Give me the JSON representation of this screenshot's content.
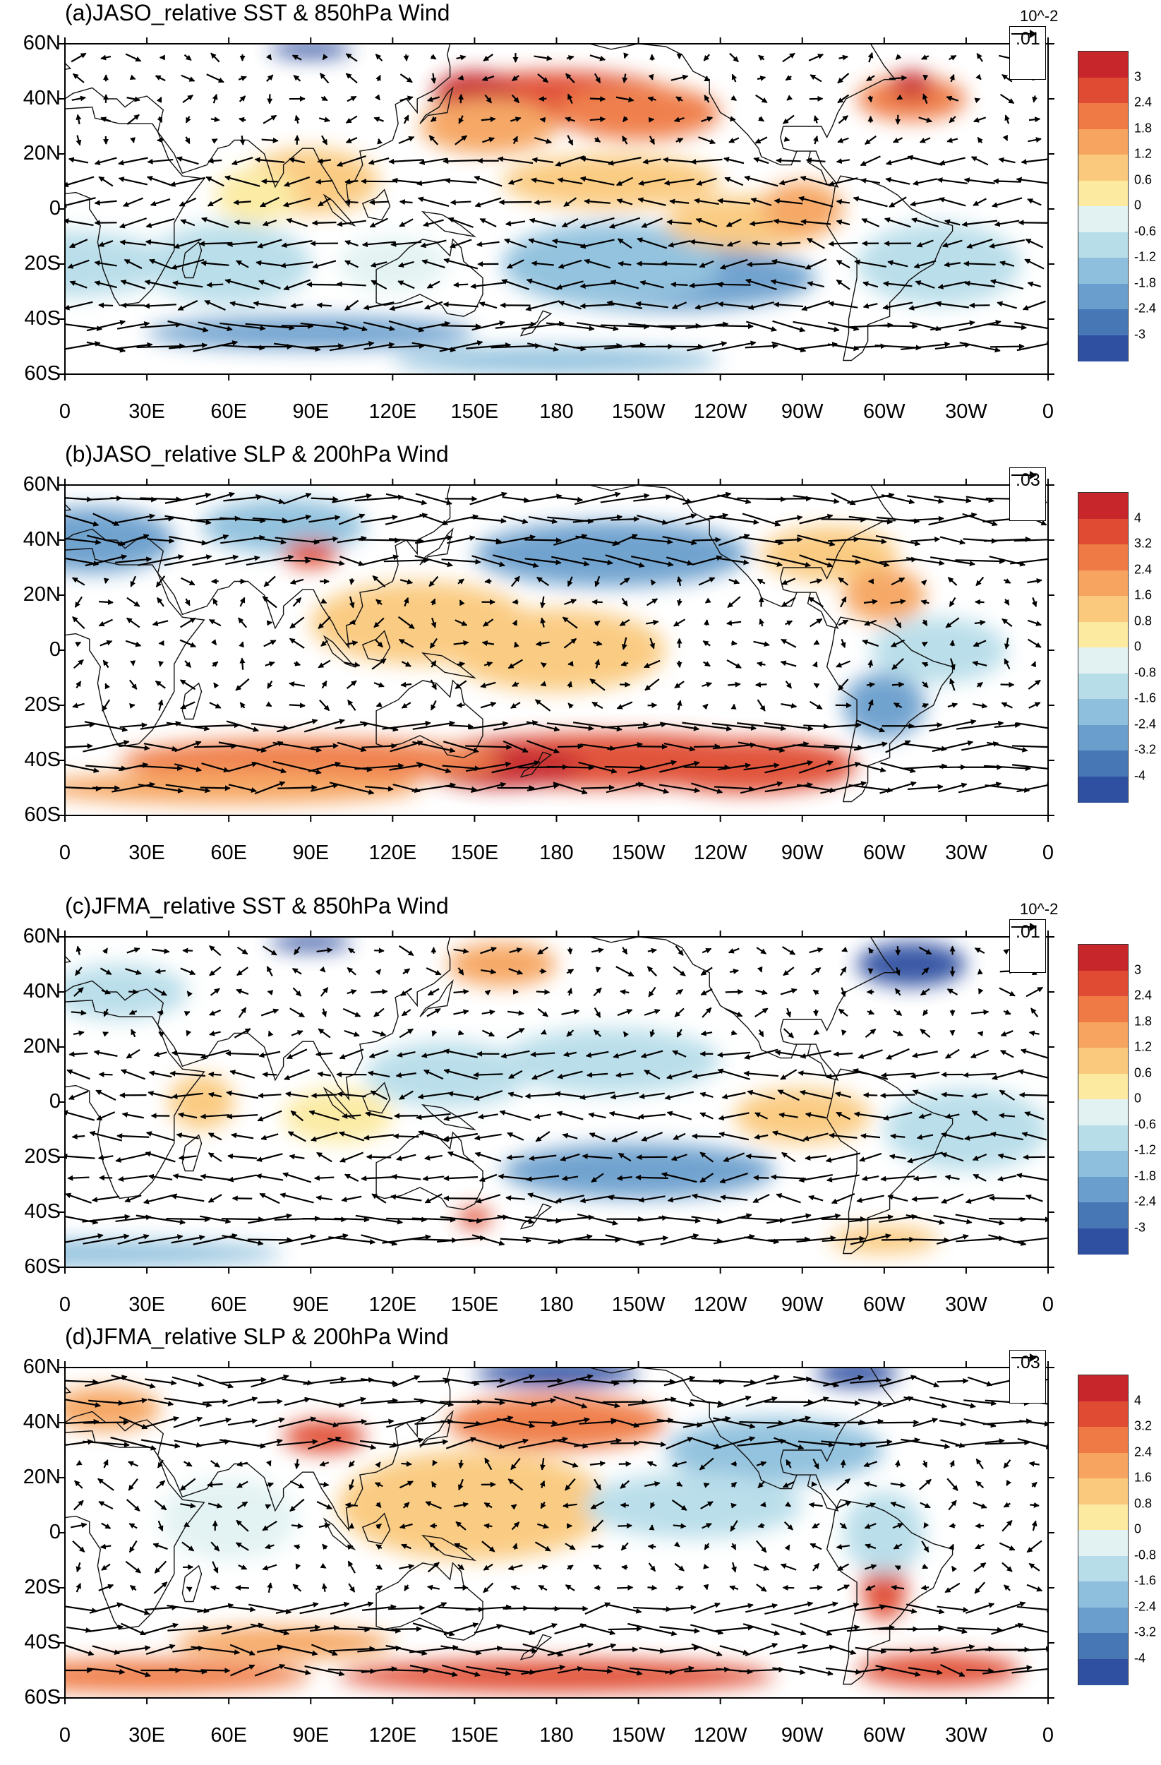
{
  "panels": [
    {
      "title": "(a)JASO_relative SST & 850hPa Wind",
      "scale_note": "10^-2",
      "ref_vector": ".01",
      "cbar_labels": [
        "3",
        "2.4",
        "1.8",
        "1.2",
        "0.6",
        "0",
        "-0.6",
        "-1.2",
        "-1.8",
        "-2.4",
        "-3"
      ]
    },
    {
      "title": "(b)JASO_relative SLP & 200hPa Wind",
      "scale_note": "",
      "ref_vector": ".03",
      "cbar_labels": [
        "4",
        "3.2",
        "2.4",
        "1.6",
        "0.8",
        "0",
        "-0.8",
        "-1.6",
        "-2.4",
        "-3.2",
        "-4"
      ]
    },
    {
      "title": "(c)JFMA_relative SST & 850hPa Wind",
      "scale_note": "10^-2",
      "ref_vector": ".01",
      "cbar_labels": [
        "3",
        "2.4",
        "1.8",
        "1.2",
        "0.6",
        "0",
        "-0.6",
        "-1.2",
        "-1.8",
        "-2.4",
        "-3"
      ]
    },
    {
      "title": "(d)JFMA_relative SLP & 200hPa Wind",
      "scale_note": "",
      "ref_vector": ".03",
      "cbar_labels": [
        "4",
        "3.2",
        "2.4",
        "1.6",
        "0.8",
        "0",
        "-0.8",
        "-1.6",
        "-2.4",
        "-3.2",
        "-4"
      ]
    }
  ],
  "lat_labels": [
    "60N",
    "40N",
    "20N",
    "0",
    "20S",
    "40S",
    "60S"
  ],
  "lon_labels": [
    "0",
    "30E",
    "60E",
    "90E",
    "120E",
    "150E",
    "180",
    "150W",
    "120W",
    "90W",
    "60W",
    "30W",
    "0"
  ],
  "colors": {
    "cbar": [
      "#c7262b",
      "#e04b33",
      "#ef7a45",
      "#f6a45f",
      "#fac97d",
      "#fbeaa0",
      "#e2f2f2",
      "#b7dde9",
      "#8ec0dd",
      "#6a9fcd",
      "#4877b6",
      "#2f4fa1"
    ]
  }
}
